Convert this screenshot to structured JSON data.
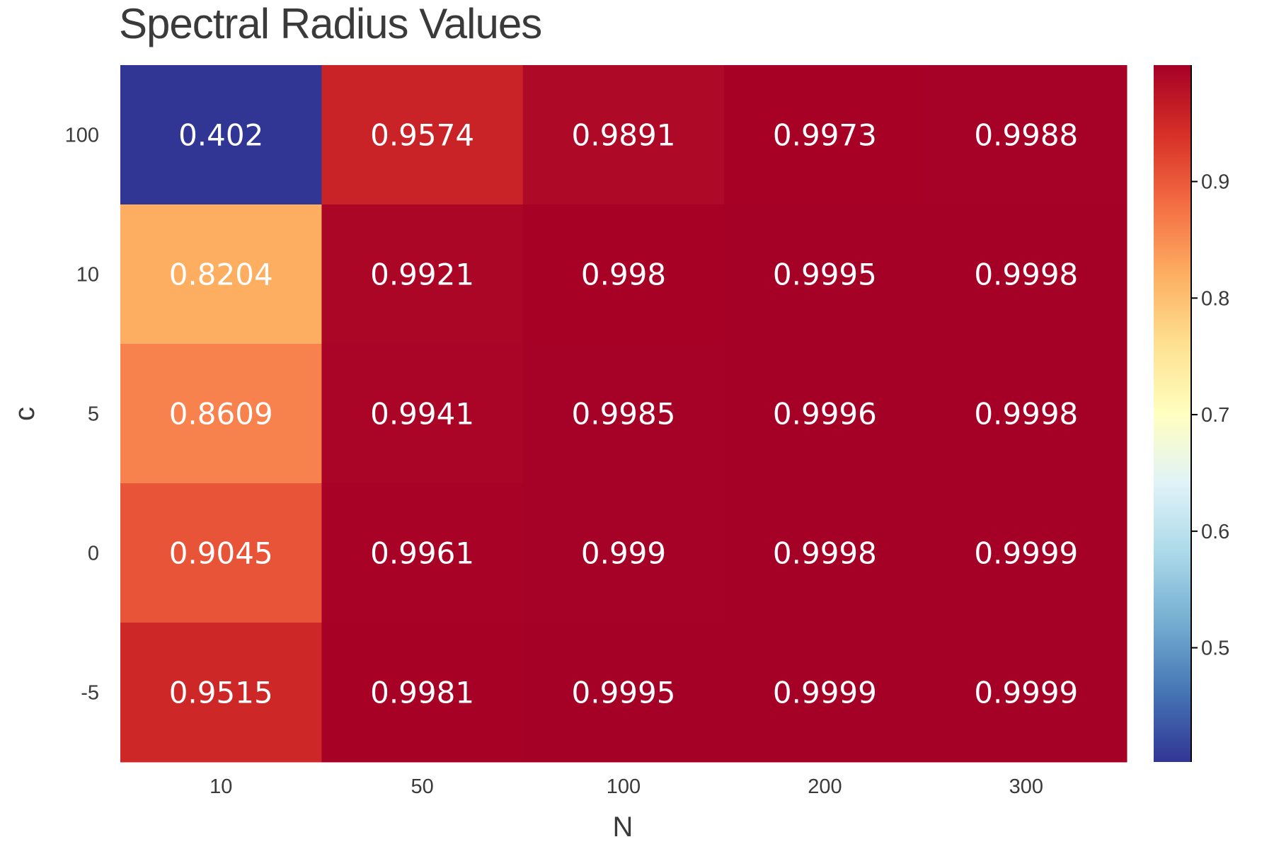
{
  "chart_data": {
    "type": "heatmap",
    "title": "Spectral Radius Values",
    "xlabel": "N",
    "ylabel": "c",
    "x_categories": [
      "10",
      "50",
      "100",
      "200",
      "300"
    ],
    "y_categories": [
      "100",
      "10",
      "5",
      "0",
      "-5"
    ],
    "values": [
      [
        0.402,
        0.9574,
        0.9891,
        0.9973,
        0.9988
      ],
      [
        0.8204,
        0.9921,
        0.998,
        0.9995,
        0.9998
      ],
      [
        0.8609,
        0.9941,
        0.9985,
        0.9996,
        0.9998
      ],
      [
        0.9045,
        0.9961,
        0.999,
        0.9998,
        0.9999
      ],
      [
        0.9515,
        0.9981,
        0.9995,
        0.9999,
        0.9999
      ]
    ],
    "cell_labels": [
      [
        "0.402",
        "0.9574",
        "0.9891",
        "0.9973",
        "0.9988"
      ],
      [
        "0.8204",
        "0.9921",
        "0.998",
        "0.9995",
        "0.9998"
      ],
      [
        "0.8609",
        "0.9941",
        "0.9985",
        "0.9996",
        "0.9998"
      ],
      [
        "0.9045",
        "0.9961",
        "0.999",
        "0.9998",
        "0.9999"
      ],
      [
        "0.9515",
        "0.9981",
        "0.9995",
        "0.9999",
        "0.9999"
      ]
    ],
    "colorbar": {
      "range": [
        0.402,
        0.9999
      ],
      "ticks": [
        0.5,
        0.6,
        0.7,
        0.8,
        0.9
      ],
      "tick_labels": [
        "0.5",
        "0.6",
        "0.7",
        "0.8",
        "0.9"
      ],
      "colormap": "RdYlBu_r",
      "placement": "right"
    },
    "grid": false
  }
}
